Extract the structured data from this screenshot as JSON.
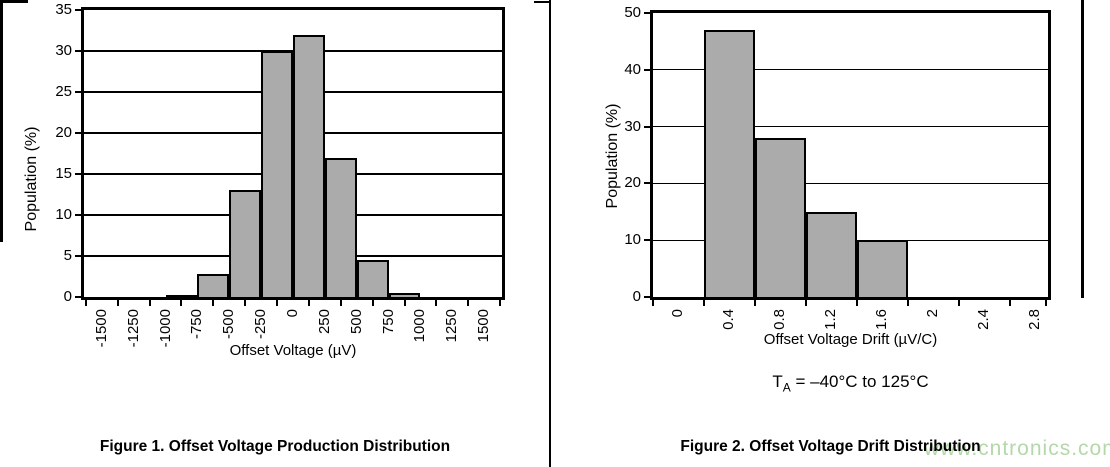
{
  "watermark": {
    "text": "www.cntronics.com",
    "color": "#a7d29b"
  },
  "chart_data": [
    {
      "type": "bar",
      "title": "Figure 1. Offset Voltage Production Distribution",
      "xlabel": "Offset Voltage (µV)",
      "ylabel": "Population (%)",
      "ylim": [
        0,
        35
      ],
      "yticks": [
        0,
        5,
        10,
        15,
        20,
        25,
        30,
        35
      ],
      "xlim": [
        -1640,
        1640
      ],
      "xticks": [
        "-1500",
        "-1250",
        "-1000",
        "-750",
        "-500",
        "-250",
        "0",
        "250",
        "500",
        "750",
        "1000",
        "1250",
        "1500"
      ],
      "grid": true,
      "bar_color": "#ababab",
      "axis_color": "#000000",
      "bins": [
        {
          "from": -1000,
          "to": -750,
          "value": 0.3
        },
        {
          "from": -750,
          "to": -500,
          "value": 2.8
        },
        {
          "from": -500,
          "to": -250,
          "value": 13
        },
        {
          "from": -250,
          "to": 0,
          "value": 30
        },
        {
          "from": 0,
          "to": 250,
          "value": 32
        },
        {
          "from": 250,
          "to": 500,
          "value": 16.9
        },
        {
          "from": 500,
          "to": 750,
          "value": 4.5
        },
        {
          "from": 750,
          "to": 1000,
          "value": 0.5
        }
      ]
    },
    {
      "type": "bar",
      "title": "Figure 2. Offset Voltage Drift Distribution",
      "xlabel": "Offset Voltage Drift (µV/C)",
      "ylabel": "Population (%)",
      "ylim": [
        0,
        50
      ],
      "yticks": [
        0,
        10,
        20,
        30,
        40,
        50
      ],
      "xlim": [
        -0.2,
        2.9
      ],
      "xticks": [
        "0",
        "0.4",
        "0.8",
        "1.2",
        "1.6",
        "2",
        "2.4",
        "2.8"
      ],
      "grid": true,
      "bar_color": "#ababab",
      "axis_color": "#000000",
      "condition": {
        "t": "T",
        "sub": "A",
        "rest": " = –40°C to 125°C"
      },
      "bins": [
        {
          "from": 0.2,
          "to": 0.6,
          "value": 47
        },
        {
          "from": 0.6,
          "to": 1.0,
          "value": 28
        },
        {
          "from": 1.0,
          "to": 1.4,
          "value": 15
        },
        {
          "from": 1.4,
          "to": 1.8,
          "value": 10
        }
      ]
    }
  ]
}
